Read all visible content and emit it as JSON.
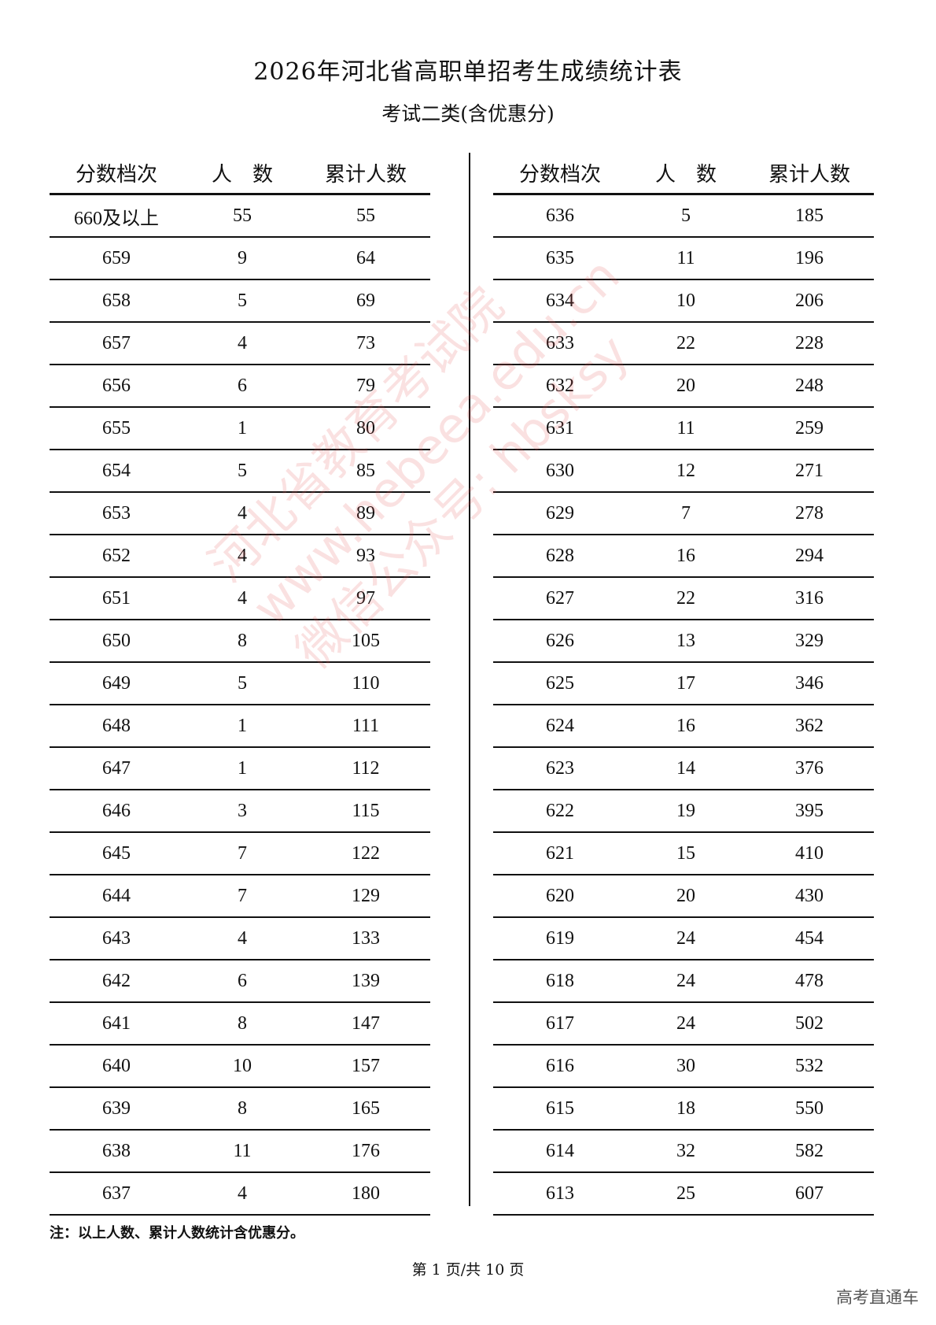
{
  "title": "2026年河北省高职单招考生成绩统计表",
  "subtitle": "考试二类(含优惠分)",
  "headers": {
    "score": "分数档次",
    "count": "人　数",
    "cumulative": "累计人数"
  },
  "left_rows": [
    [
      "660及以上",
      "55",
      "55"
    ],
    [
      "659",
      "9",
      "64"
    ],
    [
      "658",
      "5",
      "69"
    ],
    [
      "657",
      "4",
      "73"
    ],
    [
      "656",
      "6",
      "79"
    ],
    [
      "655",
      "1",
      "80"
    ],
    [
      "654",
      "5",
      "85"
    ],
    [
      "653",
      "4",
      "89"
    ],
    [
      "652",
      "4",
      "93"
    ],
    [
      "651",
      "4",
      "97"
    ],
    [
      "650",
      "8",
      "105"
    ],
    [
      "649",
      "5",
      "110"
    ],
    [
      "648",
      "1",
      "111"
    ],
    [
      "647",
      "1",
      "112"
    ],
    [
      "646",
      "3",
      "115"
    ],
    [
      "645",
      "7",
      "122"
    ],
    [
      "644",
      "7",
      "129"
    ],
    [
      "643",
      "4",
      "133"
    ],
    [
      "642",
      "6",
      "139"
    ],
    [
      "641",
      "8",
      "147"
    ],
    [
      "640",
      "10",
      "157"
    ],
    [
      "639",
      "8",
      "165"
    ],
    [
      "638",
      "11",
      "176"
    ],
    [
      "637",
      "4",
      "180"
    ]
  ],
  "right_rows": [
    [
      "636",
      "5",
      "185"
    ],
    [
      "635",
      "11",
      "196"
    ],
    [
      "634",
      "10",
      "206"
    ],
    [
      "633",
      "22",
      "228"
    ],
    [
      "632",
      "20",
      "248"
    ],
    [
      "631",
      "11",
      "259"
    ],
    [
      "630",
      "12",
      "271"
    ],
    [
      "629",
      "7",
      "278"
    ],
    [
      "628",
      "16",
      "294"
    ],
    [
      "627",
      "22",
      "316"
    ],
    [
      "626",
      "13",
      "329"
    ],
    [
      "625",
      "17",
      "346"
    ],
    [
      "624",
      "16",
      "362"
    ],
    [
      "623",
      "14",
      "376"
    ],
    [
      "622",
      "19",
      "395"
    ],
    [
      "621",
      "15",
      "410"
    ],
    [
      "620",
      "20",
      "430"
    ],
    [
      "619",
      "24",
      "454"
    ],
    [
      "618",
      "24",
      "478"
    ],
    [
      "617",
      "24",
      "502"
    ],
    [
      "616",
      "30",
      "532"
    ],
    [
      "615",
      "18",
      "550"
    ],
    [
      "614",
      "32",
      "582"
    ],
    [
      "613",
      "25",
      "607"
    ]
  ],
  "note": "注：以上人数、累计人数统计含优惠分。",
  "pager": "第 1 页/共 10 页",
  "brand": "高考直通车",
  "watermark": [
    "河北省教育考试院",
    "www.hebeea.edu.cn",
    "微信公众号: hbsksy"
  ]
}
